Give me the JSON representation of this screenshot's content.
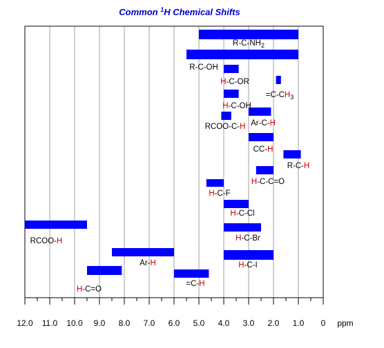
{
  "chart_data": {
    "type": "bar",
    "title": "Common ¹H Chemical Shifts",
    "title_parts": {
      "prefix": "Common ",
      "superscript": "1",
      "suffix": "H Chemical Shifts"
    },
    "xlabel": "ppm",
    "x_reversed": true,
    "xlim": [
      12.0,
      0
    ],
    "x_ticks": [
      "12.0",
      "11.0",
      "10.0",
      "9.0",
      "8.0",
      "7.0",
      "6.0",
      "5.0",
      "4.0",
      "3.0",
      "2.0",
      "1.0",
      "0"
    ],
    "grid": true,
    "bar_color": "#0000ff",
    "highlight_color": "#cc0000",
    "series": [
      {
        "label": "R-C-NH2",
        "label_parts": [
          {
            "t": "R-C-NH"
          },
          {
            "t": "2",
            "sub": true
          }
        ],
        "range": [
          5.0,
          1.0
        ]
      },
      {
        "label": "R-C-OH",
        "label_parts": [
          {
            "t": "R-C-OH"
          }
        ],
        "range": [
          5.5,
          1.0
        ]
      },
      {
        "label": "H-C-OR",
        "label_parts": [
          {
            "t": "H",
            "hl": true
          },
          {
            "t": "-C-OR"
          }
        ],
        "range": [
          4.0,
          3.4
        ]
      },
      {
        "label": "=C-CH3",
        "label_parts": [
          {
            "t": "=C-C"
          },
          {
            "t": "H",
            "hl": true
          },
          {
            "t": "3",
            "sub": true
          }
        ],
        "range": [
          1.9,
          1.7
        ]
      },
      {
        "label": "H-C-OH",
        "label_parts": [
          {
            "t": "H",
            "hl": true
          },
          {
            "t": "-C-OH"
          }
        ],
        "range": [
          4.0,
          3.4
        ]
      },
      {
        "label": "RCOO-C-H",
        "label_parts": [
          {
            "t": "RCOO-C-"
          },
          {
            "t": "H",
            "hl": true
          }
        ],
        "range": [
          4.1,
          3.7
        ]
      },
      {
        "label": "Ar-C-H",
        "label_parts": [
          {
            "t": "Ar-C-"
          },
          {
            "t": "H",
            "hl": true
          }
        ],
        "range": [
          3.0,
          2.1
        ]
      },
      {
        "label": "CC-H",
        "label_parts": [
          {
            "t": "CC-"
          },
          {
            "t": "H",
            "hl": true
          }
        ],
        "range": [
          3.0,
          2.0
        ]
      },
      {
        "label": "R-C-H",
        "label_parts": [
          {
            "t": "R-C-"
          },
          {
            "t": "H",
            "hl": true
          }
        ],
        "range": [
          1.6,
          0.9
        ]
      },
      {
        "label": "H-C-C=O",
        "label_parts": [
          {
            "t": "H",
            "hl": true
          },
          {
            "t": "-C-C=O"
          }
        ],
        "range": [
          2.7,
          2.0
        ]
      },
      {
        "label": "H-C-F",
        "label_parts": [
          {
            "t": "H",
            "hl": true
          },
          {
            "t": "-C-F"
          }
        ],
        "range": [
          4.7,
          4.0
        ]
      },
      {
        "label": "H-C-Cl",
        "label_parts": [
          {
            "t": "H",
            "hl": true
          },
          {
            "t": "-C-Cl"
          }
        ],
        "range": [
          4.0,
          3.0
        ]
      },
      {
        "label": "RCOO-H",
        "label_parts": [
          {
            "t": "RCOO-"
          },
          {
            "t": "H",
            "hl": true
          }
        ],
        "range": [
          12.0,
          9.5
        ]
      },
      {
        "label": "H-C-Br",
        "label_parts": [
          {
            "t": "H",
            "hl": true
          },
          {
            "t": "-C-Br"
          }
        ],
        "range": [
          4.0,
          2.5
        ]
      },
      {
        "label": "Ar-H",
        "label_parts": [
          {
            "t": "Ar-"
          },
          {
            "t": "H",
            "hl": true
          }
        ],
        "range": [
          8.5,
          6.0
        ]
      },
      {
        "label": "H-C-I",
        "label_parts": [
          {
            "t": "H",
            "hl": true
          },
          {
            "t": "-C-I"
          }
        ],
        "range": [
          4.0,
          2.0
        ]
      },
      {
        "label": "H-C=O",
        "label_parts": [
          {
            "t": "H",
            "hl": true
          },
          {
            "t": "-C=O"
          }
        ],
        "range": [
          9.5,
          8.1
        ]
      },
      {
        "label": "=C-H",
        "label_parts": [
          {
            "t": "=C-"
          },
          {
            "t": "H",
            "hl": true
          }
        ],
        "range": [
          6.0,
          4.6
        ]
      }
    ]
  }
}
